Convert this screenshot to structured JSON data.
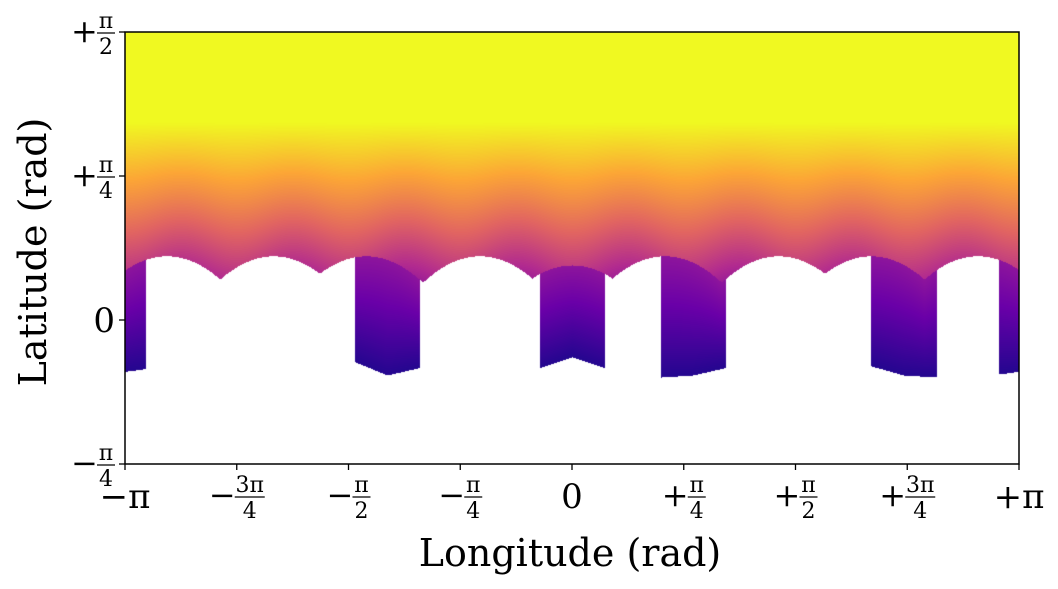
{
  "chart_data": {
    "type": "heatmap",
    "title": "",
    "xlabel": "Longitude (rad)",
    "ylabel": "Latitude (rad)",
    "xlim": [
      -3.14159,
      3.14159
    ],
    "ylim": [
      -0.7854,
      1.5708
    ],
    "grid": false,
    "legend": "none",
    "colormap": "plasma",
    "colormap_stops": [
      "#0d0887",
      "#6a00a8",
      "#b12a90",
      "#e16462",
      "#fca636",
      "#f0f921"
    ],
    "x_ticks": [
      {
        "value": -3.14159,
        "sign": "−",
        "num": "π",
        "den": ""
      },
      {
        "value": -2.35619,
        "sign": "−",
        "num": "3π",
        "den": "4"
      },
      {
        "value": -1.5708,
        "sign": "−",
        "num": "π",
        "den": "2"
      },
      {
        "value": -0.7854,
        "sign": "−",
        "num": "π",
        "den": "4"
      },
      {
        "value": 0,
        "sign": "",
        "num": "0",
        "den": ""
      },
      {
        "value": 0.7854,
        "sign": "+",
        "num": "π",
        "den": "4"
      },
      {
        "value": 1.5708,
        "sign": "+",
        "num": "π",
        "den": "2"
      },
      {
        "value": 2.35619,
        "sign": "+",
        "num": "3π",
        "den": "4"
      },
      {
        "value": 3.14159,
        "sign": "+",
        "num": "π",
        "den": ""
      }
    ],
    "y_ticks": [
      {
        "value": -0.7854,
        "sign": "−",
        "num": "π",
        "den": "4"
      },
      {
        "value": 0,
        "sign": "",
        "num": "0",
        "den": ""
      },
      {
        "value": 0.7854,
        "sign": "+",
        "num": "π",
        "den": "4"
      },
      {
        "value": 1.5708,
        "sign": "+",
        "num": "π",
        "den": "2"
      }
    ],
    "field": {
      "period": 1.5708,
      "saturated_above": 1.08,
      "lobe_centers_deg_longitude": [
        -135,
        -90,
        -45,
        0,
        45,
        90,
        135
      ],
      "deep_tip_longitudes": [
        -1.3,
        0,
        0.85,
        2.33
      ],
      "lower_boundary": [
        {
          "x": -3.14159,
          "y": -0.28
        },
        {
          "x": -2.55,
          "y": -0.22
        },
        {
          "x": -2.35,
          "y": -0.32
        },
        {
          "x": -2.1,
          "y": -0.25
        },
        {
          "x": -1.8,
          "y": -0.32
        },
        {
          "x": -1.55,
          "y": -0.22
        },
        {
          "x": -1.3,
          "y": -0.3
        },
        {
          "x": -0.85,
          "y": -0.22
        },
        {
          "x": -0.45,
          "y": -0.32
        },
        {
          "x": 0,
          "y": -0.2
        },
        {
          "x": 0.45,
          "y": -0.32
        },
        {
          "x": 0.85,
          "y": -0.3
        },
        {
          "x": 1.3,
          "y": -0.22
        },
        {
          "x": 1.55,
          "y": -0.32
        },
        {
          "x": 2.1,
          "y": -0.25
        },
        {
          "x": 2.33,
          "y": -0.3
        },
        {
          "x": 2.75,
          "y": -0.32
        },
        {
          "x": 3.14159,
          "y": -0.28
        }
      ],
      "bump_tops": [
        {
          "x": -2.85,
          "y": 0.35
        },
        {
          "x": -2.1,
          "y": 0.35
        },
        {
          "x": -1.45,
          "y": 0.35
        },
        {
          "x": -0.65,
          "y": 0.35
        },
        {
          "x": 0,
          "y": 0.3
        },
        {
          "x": 0.65,
          "y": 0.35
        },
        {
          "x": 1.45,
          "y": 0.35
        },
        {
          "x": 2.1,
          "y": 0.35
        },
        {
          "x": 2.85,
          "y": 0.35
        }
      ]
    }
  }
}
